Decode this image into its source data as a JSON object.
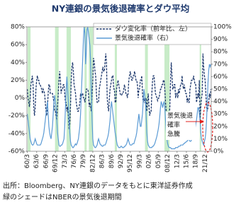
{
  "chart_data": {
    "type": "line",
    "title": "NY連銀の景気後退確率とダウ平均",
    "source": [
      "出所：Bloomberg、NY連銀のデータをもとに東洋証券作成",
      "緑のシェードはNBERの景気後退期間"
    ],
    "annotation": [
      "景気後退",
      "確率",
      "急騰"
    ],
    "categories": [
      "60/3",
      null,
      null,
      null,
      null,
      null,
      null,
      null,
      null,
      null,
      null,
      null,
      null,
      "63/6",
      null,
      null,
      null,
      null,
      null,
      null,
      null,
      null,
      null,
      null,
      null,
      null,
      "66/9",
      null,
      null,
      null,
      null,
      null,
      null,
      null,
      null,
      null,
      null,
      null,
      null,
      "69/12",
      null,
      null,
      null,
      null,
      null,
      null,
      null,
      null,
      null,
      null,
      null,
      null,
      "73/3",
      null,
      null,
      null,
      null,
      null,
      null,
      null,
      null,
      null,
      null,
      null,
      null,
      "76/6",
      null,
      null,
      null,
      null,
      null,
      null,
      null,
      null,
      null,
      null,
      null,
      null,
      "79/9",
      null,
      null,
      null,
      null,
      null,
      null,
      null,
      null,
      null,
      null,
      null,
      null,
      "82/12",
      null,
      null,
      null,
      null,
      null,
      null,
      null,
      null,
      null,
      null,
      null,
      null,
      "86/3",
      null,
      null,
      null,
      null,
      null,
      null,
      null,
      null,
      null,
      null,
      null,
      null,
      "89/6",
      null,
      null,
      null,
      null,
      null,
      null,
      null,
      null,
      null,
      null,
      null,
      null,
      "92/9",
      null,
      null,
      null,
      null,
      null,
      null,
      null,
      null,
      null,
      null,
      null,
      null,
      "95/12",
      null,
      null,
      null,
      null,
      null,
      null,
      null,
      null,
      null,
      null,
      null,
      null,
      "99/3",
      null,
      null,
      null,
      null,
      null,
      null,
      null,
      null,
      null,
      null,
      null,
      null,
      "02/6",
      null,
      null,
      null,
      null,
      null,
      null,
      null,
      null,
      null,
      null,
      null,
      null,
      "05/9",
      null,
      null,
      null,
      null,
      null,
      null,
      null,
      null,
      null,
      null,
      null,
      null,
      "08/12",
      null,
      null,
      null,
      null,
      null,
      null,
      null,
      null,
      null,
      null,
      null,
      null,
      "12/3",
      null,
      null,
      null,
      null,
      null,
      null,
      null,
      null,
      null,
      null,
      null,
      null,
      "15/6",
      null,
      null,
      null,
      null,
      null,
      null,
      null,
      null,
      null,
      null,
      null,
      null,
      "18/9",
      null,
      null,
      null,
      null,
      null,
      null,
      null,
      null,
      null,
      null,
      null,
      null,
      "21/12",
      null,
      null,
      null,
      null,
      null,
      null,
      null,
      null
    ],
    "recessions": [
      [
        1,
        4
      ],
      [
        39,
        43
      ],
      [
        55,
        60
      ],
      [
        80,
        82
      ],
      [
        86,
        91
      ],
      [
        122,
        124
      ],
      [
        164,
        167
      ],
      [
        191,
        197
      ],
      [
        240,
        241
      ]
    ],
    "recession_color": "#c8ecc8",
    "series": [
      {
        "name": "ダウ変化率（前年比、左）",
        "color": "#1f3a6e",
        "dashed": true,
        "values": [
          10,
          0,
          -5,
          -10,
          0,
          15,
          20,
          25,
          15,
          -10,
          -20,
          -10,
          10,
          20,
          25,
          20,
          20,
          15,
          15,
          12,
          10,
          5,
          10,
          8,
          5,
          -5,
          -15,
          -20,
          -10,
          5,
          15,
          15,
          5,
          5,
          5,
          5,
          0,
          -5,
          -15,
          -15,
          -20,
          -25,
          -10,
          5,
          20,
          30,
          20,
          5,
          10,
          10,
          15,
          15,
          5,
          -5,
          -5,
          -15,
          -10,
          -20,
          -35,
          -30,
          -10,
          20,
          35,
          40,
          30,
          15,
          10,
          5,
          -5,
          -10,
          -15,
          -15,
          -10,
          -5,
          5,
          0,
          5,
          5,
          0,
          0,
          -5,
          0,
          10,
          10,
          10,
          5,
          -10,
          -5,
          -10,
          -15,
          5,
          20,
          45,
          40,
          30,
          25,
          5,
          -5,
          -5,
          -5,
          10,
          15,
          20,
          25,
          30,
          35,
          30,
          30,
          40,
          50,
          40,
          0,
          -10,
          -15,
          0,
          10,
          15,
          20,
          25,
          25,
          10,
          10,
          -5,
          -5,
          10,
          15,
          20,
          15,
          10,
          5,
          3,
          3,
          5,
          5,
          10,
          15,
          10,
          5,
          5,
          0,
          5,
          20,
          25,
          30,
          25,
          20,
          20,
          25,
          25,
          30,
          25,
          20,
          20,
          15,
          0,
          10,
          10,
          20,
          20,
          25,
          5,
          -5,
          0,
          -5,
          -5,
          0,
          -15,
          -5,
          5,
          -10,
          -20,
          -15,
          -15,
          5,
          20,
          25,
          25,
          15,
          5,
          3,
          0,
          -3,
          0,
          0,
          5,
          10,
          10,
          15,
          15,
          20,
          20,
          10,
          -5,
          -15,
          -20,
          -35,
          -40,
          -25,
          -10,
          20,
          40,
          25,
          10,
          10,
          15,
          15,
          0,
          5,
          5,
          0,
          10,
          5,
          10,
          15,
          15,
          25,
          15,
          10,
          15,
          10,
          5,
          5,
          -5,
          0,
          -5,
          -5,
          10,
          15,
          20,
          20,
          20,
          25,
          20,
          15,
          15,
          -5,
          0,
          5,
          0,
          20,
          -25,
          -10,
          0,
          5,
          50,
          35,
          25,
          20,
          5,
          -10,
          -15,
          -10,
          -5,
          5,
          0,
          10
        ]
      },
      {
        "name": "景気後退確率（右）",
        "color": "#5b9bd5",
        "axis": "y2",
        "values": [
          30,
          25,
          20,
          15,
          10,
          8,
          6,
          5,
          5,
          6,
          8,
          10,
          8,
          6,
          5,
          5,
          5,
          5,
          5,
          6,
          8,
          10,
          12,
          15,
          20,
          25,
          30,
          35,
          40,
          30,
          20,
          15,
          12,
          10,
          15,
          20,
          30,
          40,
          45,
          40,
          35,
          25,
          15,
          10,
          5,
          4,
          4,
          5,
          5,
          6,
          8,
          10,
          20,
          35,
          50,
          60,
          50,
          40,
          25,
          15,
          8,
          5,
          4,
          3,
          3,
          4,
          5,
          6,
          5,
          6,
          8,
          10,
          15,
          20,
          30,
          45,
          60,
          75,
          90,
          100,
          95,
          70,
          80,
          98,
          100,
          95,
          90,
          85,
          70,
          45,
          25,
          10,
          5,
          4,
          3,
          3,
          4,
          5,
          8,
          10,
          8,
          6,
          5,
          5,
          4,
          4,
          5,
          5,
          5,
          6,
          8,
          10,
          12,
          15,
          20,
          25,
          35,
          40,
          35,
          30,
          25,
          20,
          15,
          12,
          8,
          5,
          4,
          3,
          3,
          3,
          4,
          4,
          3,
          3,
          3,
          4,
          4,
          5,
          6,
          8,
          10,
          8,
          6,
          5,
          5,
          5,
          6,
          6,
          6,
          8,
          10,
          12,
          15,
          20,
          25,
          30,
          25,
          20,
          20,
          25,
          30,
          40,
          50,
          45,
          40,
          30,
          15,
          8,
          5,
          4,
          3,
          3,
          3,
          3,
          4,
          4,
          5,
          6,
          8,
          10,
          12,
          15,
          18,
          22,
          28,
          35,
          40,
          38,
          35,
          38,
          40,
          35,
          25,
          15,
          10,
          6,
          4,
          3,
          3,
          3,
          2,
          2,
          2,
          2,
          2,
          2,
          3,
          3,
          3,
          3,
          4,
          4,
          4,
          5,
          5,
          5,
          5,
          6,
          6,
          7,
          7,
          8,
          8,
          9,
          10,
          9,
          8,
          8,
          9,
          10,
          12,
          14,
          15,
          18,
          22,
          25,
          30,
          35,
          35,
          30,
          25,
          15,
          10,
          8,
          6,
          5,
          8,
          10,
          15,
          25,
          40,
          55,
          65,
          70,
          68,
          70
        ]
      }
    ],
    "ylim": [
      -60,
      80
    ],
    "yticks": [
      {
        "value": -60,
        "label": "-60%"
      },
      {
        "value": -40,
        "label": "-40%"
      },
      {
        "value": -20,
        "label": "-20%"
      },
      {
        "value": 0,
        "label": "0%"
      },
      {
        "value": 20,
        "label": "20%"
      },
      {
        "value": 40,
        "label": "40%"
      },
      {
        "value": 60,
        "label": "60%"
      },
      {
        "value": 80,
        "label": "80%"
      }
    ],
    "y2lim": [
      0,
      100
    ],
    "y2ticks": [
      {
        "value": 0,
        "label": "0%"
      },
      {
        "value": 10,
        "label": "10%"
      },
      {
        "value": 20,
        "label": "20%"
      },
      {
        "value": 30,
        "label": "30%"
      },
      {
        "value": 40,
        "label": "40%"
      },
      {
        "value": 50,
        "label": "50%"
      },
      {
        "value": 60,
        "label": "60%"
      },
      {
        "value": 70,
        "label": "70%"
      },
      {
        "value": 80,
        "label": "80%"
      },
      {
        "value": 90,
        "label": "90%"
      },
      {
        "value": 100,
        "label": "100%"
      }
    ]
  }
}
